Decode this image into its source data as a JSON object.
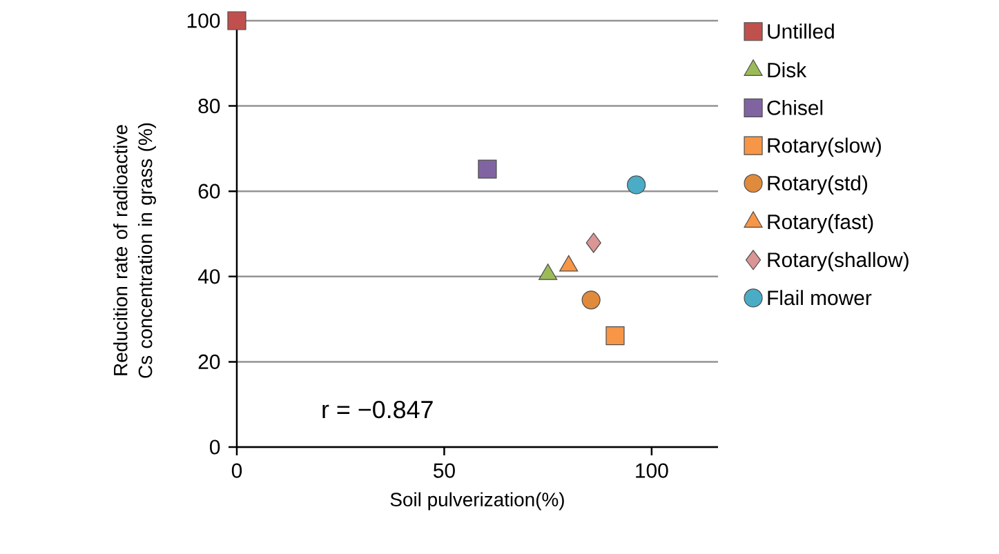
{
  "chart_data": {
    "type": "scatter",
    "xlabel": "Soil pulverization(%)",
    "ylabel": "Reducition rate of radioactive  Cs concentration in grass (%)",
    "annotations": [
      "r = −0.847"
    ],
    "series": [
      {
        "name": "Untilled",
        "color": "#c0504d",
        "marker": "square",
        "x": [
          0
        ],
        "values": [
          100
        ]
      },
      {
        "name": "Disk",
        "color": "#9bbb59",
        "marker": "triangle",
        "x": [
          75
        ],
        "values": [
          40.5
        ]
      },
      {
        "name": "Chisel",
        "color": "#8064a2",
        "marker": "square",
        "x": [
          60.4
        ],
        "values": [
          65.2
        ]
      },
      {
        "name": "Rotary(slow)",
        "color": "#f79646",
        "marker": "square",
        "x": [
          91.2
        ],
        "values": [
          26.1
        ]
      },
      {
        "name": "Rotary(std)",
        "color": "#e08a3c",
        "marker": "circle",
        "x": [
          85.4
        ],
        "values": [
          34.5
        ]
      },
      {
        "name": "Rotary(fast)",
        "color": "#f79646",
        "marker": "triangle",
        "x": [
          80.0
        ],
        "values": [
          42.5
        ]
      },
      {
        "name": "Rotary(shallow)",
        "color": "#d99694",
        "marker": "diamond",
        "x": [
          86.0
        ],
        "values": [
          47.9
        ]
      },
      {
        "name": "Flail mower",
        "color": "#4bacc6",
        "marker": "circle",
        "x": [
          96.3
        ],
        "values": [
          61.5
        ]
      }
    ],
    "xlim": [
      0,
      116
    ],
    "ylim": [
      0,
      100
    ],
    "xticks": [
      0,
      50,
      100
    ],
    "yticks": [
      0,
      20,
      40,
      60,
      80,
      100
    ],
    "grid": "y",
    "legend": "right"
  }
}
